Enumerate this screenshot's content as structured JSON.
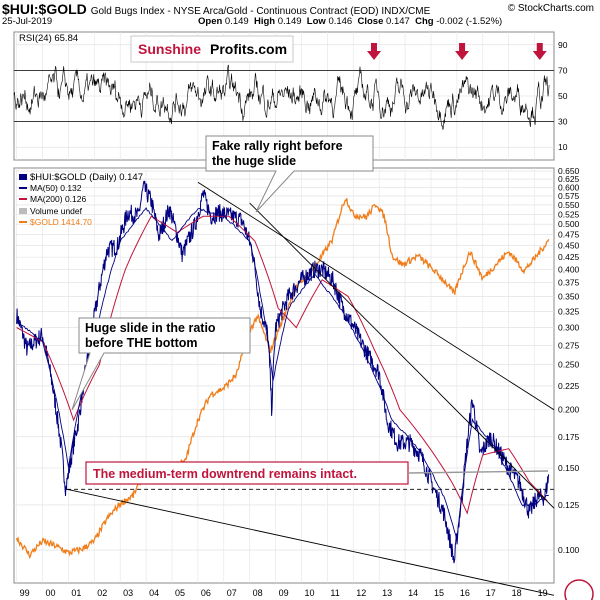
{
  "header": {
    "symbol": "$HUI:$GOLD",
    "description": "Gold Bugs Index - NYSE Arca/Gold - Continuous Contract (EOD)  INDX/CME",
    "date": "25-Jul-2019",
    "open_label": "Open",
    "open": "0.149",
    "high_label": "High",
    "high": "0.149",
    "low_label": "Low",
    "low": "0.146",
    "close_label": "Close",
    "close": "0.147",
    "chg_label": "Chg",
    "chg": "-0.002 (-1.52%)",
    "copyright": "© StockCharts.com"
  },
  "rsi_panel": {
    "label": "RSI(24) 65.84",
    "ticks": [
      90,
      70,
      50,
      30,
      10
    ],
    "ylim": [
      0,
      100
    ],
    "reference_lines": [
      70,
      30
    ],
    "logo_red": "Sunshine",
    "logo_black": "Profits.com",
    "arrow_years": [
      2012.8,
      2016.2,
      2019.2
    ],
    "arrow_color": "#c0143c"
  },
  "legend": {
    "main": "$HUI:$GOLD (Daily) 0.147",
    "ma50": "MA(50) 0.132",
    "ma200": "MA(200) 0.126",
    "volume": "Volume undef",
    "gold": "$GOLD 1414.70"
  },
  "annotations": {
    "fake_rally": "Fake rally right before the huge slide",
    "fake_rally_line1": "Fake rally right before",
    "fake_rally_line2": "the huge slide",
    "huge_slide_line1": "Huge slide in the ratio",
    "huge_slide_line2": "before THE bottom",
    "downtrend": "The medium-term downtrend remains intact."
  },
  "colors": {
    "ratio": "#000080",
    "ma50": "#000080",
    "ma200": "#c0143c",
    "gold": "#f07d1a",
    "trend": "#000000",
    "accent": "#c0143c"
  },
  "chart_data": {
    "type": "line",
    "title": "$HUI:$GOLD Gold Bugs Index to Gold ratio (Daily)",
    "xlabel": "",
    "ylabel": "",
    "x_ticks": [
      "99",
      "00",
      "01",
      "02",
      "03",
      "04",
      "05",
      "06",
      "07",
      "08",
      "09",
      "10",
      "11",
      "12",
      "13",
      "14",
      "15",
      "16",
      "17",
      "18",
      "19"
    ],
    "xlim": [
      1998.9,
      2019.75
    ],
    "y_scale": "log",
    "ylim": [
      0.085,
      0.66
    ],
    "y_ticks": [
      0.65,
      0.625,
      0.6,
      0.575,
      0.55,
      0.525,
      0.5,
      0.475,
      0.45,
      0.425,
      0.4,
      0.375,
      0.35,
      0.325,
      0.3,
      0.275,
      0.25,
      0.225,
      0.2,
      0.175,
      0.15,
      0.125,
      0.1
    ],
    "series": [
      {
        "name": "$HUI:$GOLD",
        "x": [
          1999.0,
          1999.4,
          2000.0,
          2000.3,
          2000.9,
          2001.4,
          2001.9,
          2002.5,
          2002.9,
          2003.3,
          2003.7,
          2003.9,
          2004.2,
          2004.5,
          2004.9,
          2005.4,
          2005.9,
          2006.2,
          2006.5,
          2006.8,
          2007.3,
          2007.7,
          2008.1,
          2008.4,
          2008.7,
          2008.85,
          2009.0,
          2009.5,
          2010.0,
          2010.5,
          2010.8,
          2011.2,
          2011.6,
          2011.9,
          2012.3,
          2012.6,
          2013.0,
          2013.3,
          2013.7,
          2014.2,
          2014.6,
          2015.0,
          2015.5,
          2015.9,
          2016.2,
          2016.6,
          2016.9,
          2017.3,
          2017.7,
          2018.0,
          2018.4,
          2018.8,
          2019.1,
          2019.4,
          2019.57
        ],
        "values": [
          0.32,
          0.27,
          0.29,
          0.24,
          0.135,
          0.19,
          0.29,
          0.44,
          0.45,
          0.53,
          0.52,
          0.6,
          0.56,
          0.47,
          0.54,
          0.43,
          0.5,
          0.58,
          0.52,
          0.53,
          0.52,
          0.51,
          0.44,
          0.33,
          0.29,
          0.2,
          0.3,
          0.35,
          0.38,
          0.4,
          0.4,
          0.38,
          0.33,
          0.31,
          0.28,
          0.26,
          0.24,
          0.19,
          0.17,
          0.17,
          0.16,
          0.14,
          0.12,
          0.094,
          0.13,
          0.21,
          0.16,
          0.175,
          0.16,
          0.15,
          0.14,
          0.12,
          0.13,
          0.13,
          0.147
        ]
      },
      {
        "name": "MA(50)",
        "x": [
          1999.0,
          2000.0,
          2001.0,
          2002.0,
          2003.0,
          2004.0,
          2005.0,
          2006.0,
          2007.0,
          2008.0,
          2008.9,
          2009.5,
          2010.5,
          2011.5,
          2012.5,
          2013.5,
          2014.5,
          2015.5,
          2016.0,
          2016.6,
          2017.5,
          2018.5,
          2019.0,
          2019.57
        ],
        "values": [
          0.31,
          0.28,
          0.15,
          0.28,
          0.46,
          0.54,
          0.46,
          0.54,
          0.52,
          0.46,
          0.23,
          0.33,
          0.39,
          0.33,
          0.26,
          0.19,
          0.165,
          0.13,
          0.105,
          0.19,
          0.165,
          0.125,
          0.125,
          0.132
        ]
      },
      {
        "name": "MA(200)",
        "x": [
          1999.0,
          2000.0,
          2001.2,
          2002.2,
          2003.2,
          2004.2,
          2005.2,
          2006.2,
          2007.2,
          2008.2,
          2009.1,
          2009.8,
          2010.8,
          2011.8,
          2012.8,
          2013.8,
          2014.8,
          2015.8,
          2016.4,
          2017.0,
          2018.0,
          2018.8,
          2019.57
        ],
        "values": [
          0.3,
          0.28,
          0.19,
          0.25,
          0.4,
          0.52,
          0.48,
          0.52,
          0.52,
          0.46,
          0.33,
          0.3,
          0.38,
          0.35,
          0.27,
          0.2,
          0.17,
          0.14,
          0.12,
          0.16,
          0.165,
          0.14,
          0.126
        ]
      },
      {
        "name": "$GOLD",
        "x": [
          1999.0,
          1999.5,
          2000.0,
          2000.5,
          2001.0,
          2001.5,
          2002.0,
          2002.5,
          2003.0,
          2003.5,
          2004.0,
          2004.5,
          2005.0,
          2005.5,
          2006.0,
          2006.5,
          2007.0,
          2007.5,
          2008.0,
          2008.3,
          2008.8,
          2009.3,
          2009.8,
          2010.3,
          2010.8,
          2011.2,
          2011.7,
          2012.0,
          2012.5,
          2012.9,
          2013.2,
          2013.5,
          2013.9,
          2014.5,
          2015.0,
          2015.5,
          2015.9,
          2016.5,
          2017.0,
          2017.5,
          2018.0,
          2018.6,
          2019.0,
          2019.57
        ],
        "values": [
          287,
          262,
          282,
          275,
          265,
          270,
          282,
          318,
          345,
          360,
          410,
          395,
          425,
          430,
          540,
          620,
          640,
          690,
          870,
          940,
          780,
          930,
          1100,
          1180,
          1300,
          1420,
          1780,
          1620,
          1600,
          1720,
          1600,
          1300,
          1240,
          1300,
          1220,
          1140,
          1060,
          1330,
          1150,
          1240,
          1330,
          1200,
          1280,
          1420
        ]
      }
    ],
    "gold_note": "$GOLD values in USD, drawn against the same chart area (right-axis scale not printed)",
    "trendlines": [
      {
        "name": "upper long-term resistance",
        "x": [
          2006.0,
          2019.75
        ],
        "values": [
          0.615,
          0.2
        ]
      },
      {
        "name": "medium-term downtrend",
        "x": [
          2008.0,
          2019.75
        ],
        "values": [
          0.555,
          0.123
        ]
      },
      {
        "name": "lower support",
        "x": [
          2000.95,
          2019.75
        ],
        "values": [
          0.135,
          0.08
        ]
      },
      {
        "name": "horizontal bottom line (dashed)",
        "x": [
          2000.95,
          2019.75
        ],
        "values": [
          0.135,
          0.135
        ]
      }
    ]
  }
}
